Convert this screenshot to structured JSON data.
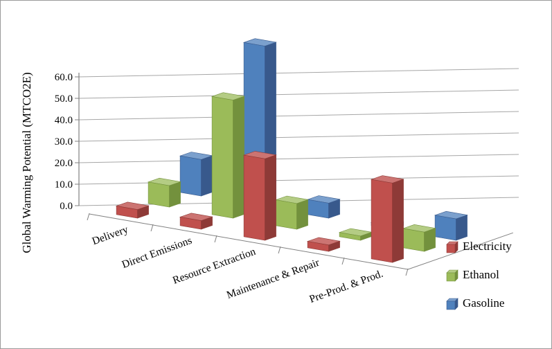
{
  "chart_data": {
    "type": "bar",
    "projection": "3d",
    "title": "",
    "xlabel": "",
    "ylabel": "Global Warming Potential (MTCO2E)",
    "categories": [
      "Delivery",
      "Direct Emissions",
      "Resource Extraction",
      "Maintenance & Repair",
      "Pre-Prod. & Prod."
    ],
    "series": [
      {
        "name": "Electricity",
        "values": [
          4,
          4,
          38,
          3,
          37
        ],
        "color": "#C0504D",
        "color_top": "#CC7472",
        "color_side": "#8E3A37"
      },
      {
        "name": "Ethanol",
        "values": [
          10,
          55,
          12,
          2,
          9
        ],
        "color": "#9BBB59",
        "color_top": "#B4CC84",
        "color_side": "#73913D"
      },
      {
        "name": "Gasoline",
        "values": [
          17,
          75,
          7,
          1.5,
          10
        ],
        "color": "#4F81BD",
        "color_top": "#7BA0CD",
        "color_side": "#38598C"
      }
    ],
    "ylim": [
      0,
      60
    ],
    "ytick_step": 10,
    "ytick_format_decimals": 1,
    "grid": true,
    "legend_position": "right-bottom",
    "axis_color": "#808080",
    "grid_color": "#A6A6A6",
    "text_color": "#000000"
  }
}
